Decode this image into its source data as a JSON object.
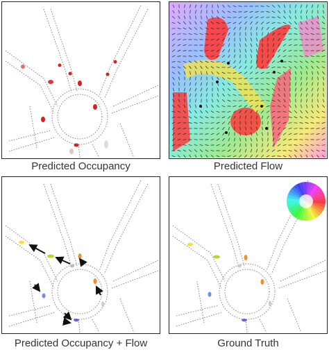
{
  "figure": {
    "panels": [
      {
        "caption": "Predicted Occupancy"
      },
      {
        "caption": "Predicted Flow"
      },
      {
        "caption": "Predicted Occupancy + Flow"
      },
      {
        "caption": "Ground Truth"
      }
    ]
  },
  "colors": {
    "occupancy_red": "#d92020",
    "flow_background": [
      "#ff3a3a",
      "#f2e24c",
      "#7de36a",
      "#5fe3d6",
      "#7aa8ff",
      "#d48cff",
      "#ff7ad0"
    ],
    "agent_yellow": "#f3e23a",
    "agent_lime": "#b6d82a",
    "agent_orange": "#f0922a",
    "agent_blue": "#6a8ef0",
    "agent_purple": "#7a4ff0",
    "road_line": "#555555",
    "arrow": "#111111"
  }
}
